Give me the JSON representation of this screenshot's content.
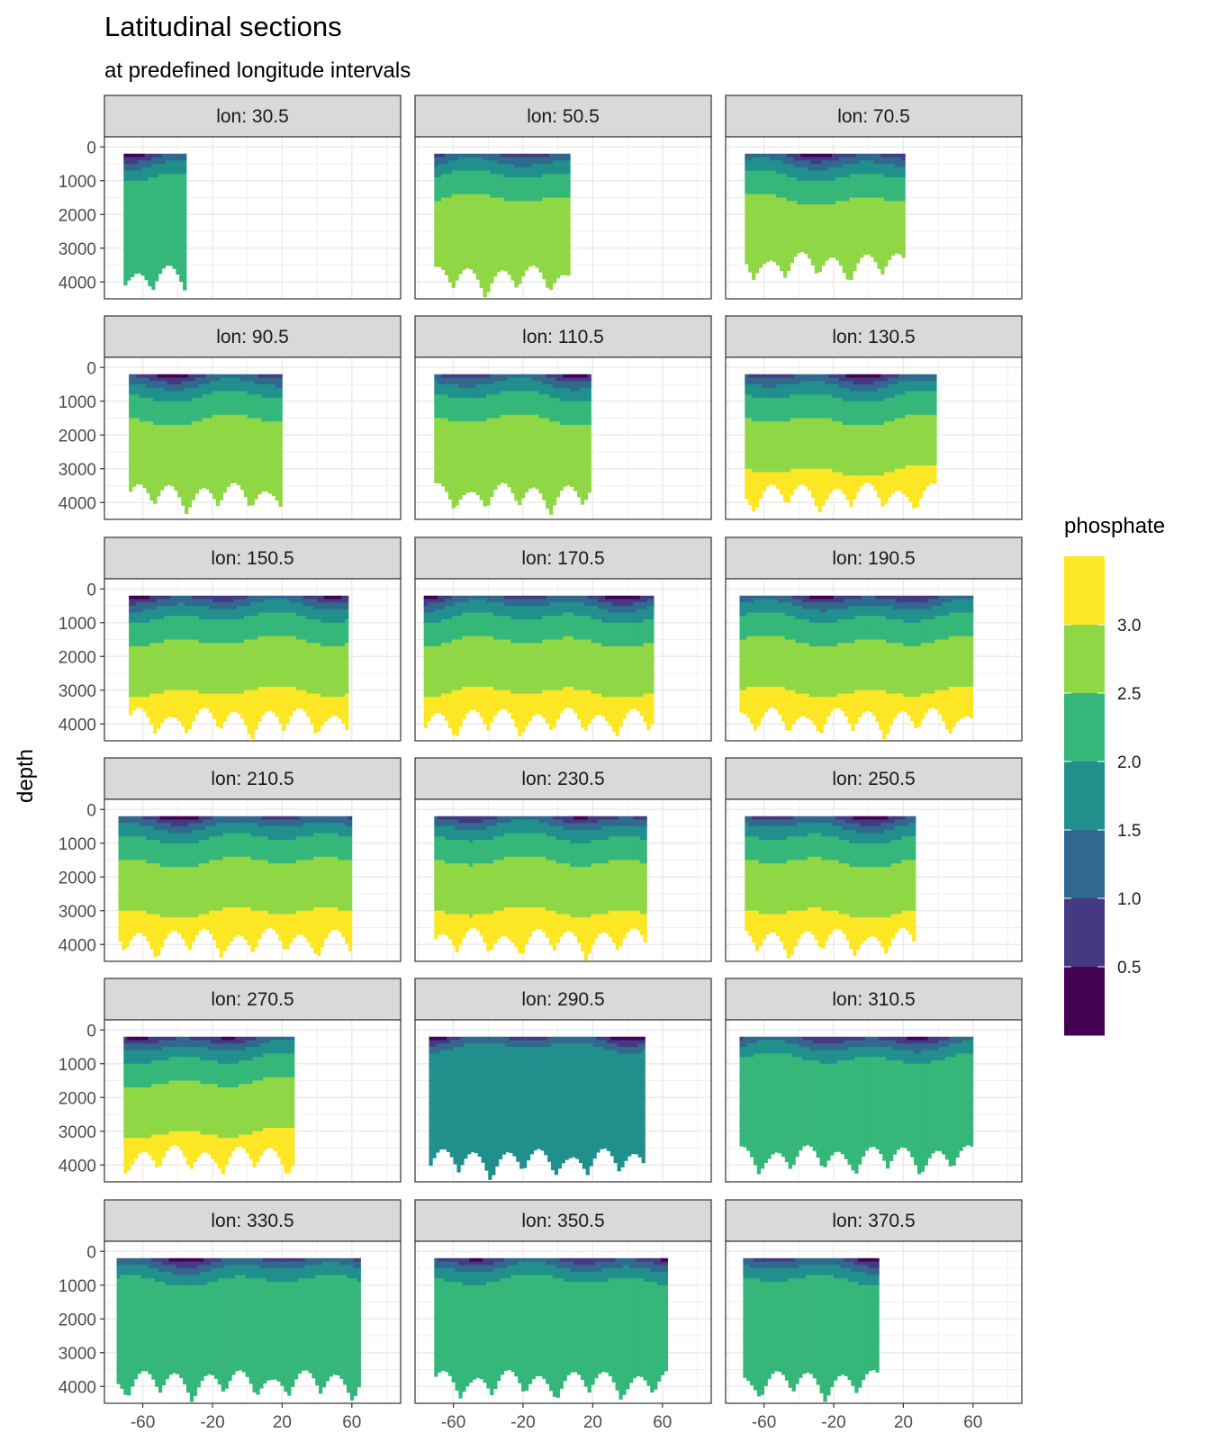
{
  "chart_data": {
    "type": "heatmap",
    "title": "Latitudinal sections",
    "subtitle": "at predefined longitude intervals",
    "xlabel": "",
    "ylabel": "depth",
    "xlim": [
      -82,
      88
    ],
    "ylim": [
      4500,
      -300
    ],
    "x_ticks": [
      -60,
      -20,
      20,
      60
    ],
    "x_tick_labels": [
      "-60",
      "-20",
      "20",
      "60"
    ],
    "y_ticks": [
      0,
      1000,
      2000,
      3000,
      4000
    ],
    "y_tick_labels": [
      "0",
      "1000",
      "2000",
      "3000",
      "4000"
    ],
    "grid": true,
    "legend": {
      "title": "phosphate",
      "position": "right",
      "breaks": [
        "0.5",
        "1.0",
        "1.5",
        "2.0",
        "2.5",
        "3.0"
      ],
      "colors": [
        "#440154",
        "#443a83",
        "#31688e",
        "#21908d",
        "#35b779",
        "#8fd744",
        "#fde725"
      ]
    },
    "panels": [
      {
        "label": "lon: 30.5",
        "extent": [
          -71,
          -35
        ],
        "max_depth": 4500,
        "max_level": 4
      },
      {
        "label": "lon: 50.5",
        "extent": [
          -71,
          7
        ],
        "max_depth": 4500,
        "max_level": 5
      },
      {
        "label": "lon: 70.5",
        "extent": [
          -71,
          20
        ],
        "max_depth": 4100,
        "max_level": 5
      },
      {
        "label": "lon: 90.5",
        "extent": [
          -68,
          20
        ],
        "max_depth": 4400,
        "max_level": 5
      },
      {
        "label": "lon: 110.5",
        "extent": [
          -71,
          19
        ],
        "max_depth": 4400,
        "max_level": 5
      },
      {
        "label": "lon: 130.5",
        "extent": [
          -71,
          39
        ],
        "max_depth": 4400,
        "max_level": 6
      },
      {
        "label": "lon: 150.5",
        "extent": [
          -68,
          58
        ],
        "max_depth": 4500,
        "max_level": 6
      },
      {
        "label": "lon: 170.5",
        "extent": [
          -77,
          55
        ],
        "max_depth": 4500,
        "max_level": 6
      },
      {
        "label": "lon: 190.5",
        "extent": [
          -74,
          60
        ],
        "max_depth": 4500,
        "max_level": 6
      },
      {
        "label": "lon: 210.5",
        "extent": [
          -74,
          60
        ],
        "max_depth": 4500,
        "max_level": 6
      },
      {
        "label": "lon: 230.5",
        "extent": [
          -71,
          50
        ],
        "max_depth": 4500,
        "max_level": 6
      },
      {
        "label": "lon: 250.5",
        "extent": [
          -71,
          27
        ],
        "max_depth": 4500,
        "max_level": 6
      },
      {
        "label": "lon: 270.5",
        "extent": [
          -71,
          27
        ],
        "max_depth": 4400,
        "max_level": 6
      },
      {
        "label": "lon: 290.5",
        "extent": [
          -74,
          49
        ],
        "max_depth": 4500,
        "max_level": 3
      },
      {
        "label": "lon: 310.5",
        "extent": [
          -74,
          60
        ],
        "max_depth": 4400,
        "max_level": 4
      },
      {
        "label": "lon: 330.5",
        "extent": [
          -75,
          64
        ],
        "max_depth": 4500,
        "max_level": 4
      },
      {
        "label": "lon: 350.5",
        "extent": [
          -71,
          63
        ],
        "max_depth": 4500,
        "max_level": 4
      },
      {
        "label": "lon: 370.5",
        "extent": [
          -72,
          5
        ],
        "max_depth": 4500,
        "max_level": 4
      }
    ]
  }
}
